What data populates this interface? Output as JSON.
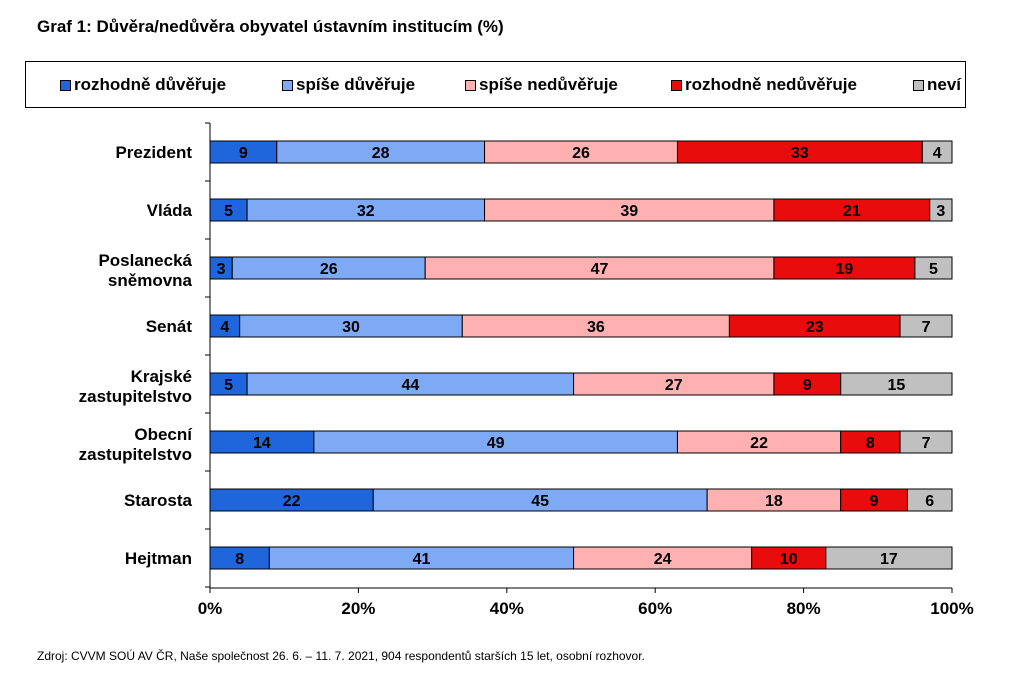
{
  "chart_data": {
    "type": "bar",
    "orientation": "horizontal",
    "stacked": true,
    "title_prefix": "Graf 1:",
    "title": "Důvěra/nedůvěra obyvatel ústavním institucím (%)",
    "xlabel": "",
    "ylabel": "",
    "xlim": [
      0,
      100
    ],
    "x_ticks": [
      "0%",
      "20%",
      "40%",
      "60%",
      "80%",
      "100%"
    ],
    "grid": false,
    "legend_position": "top",
    "categories": [
      "Prezident",
      "Vláda",
      "Poslanecká sněmovna",
      "Senát",
      "Krajské zastupitelstvo",
      "Obecní zastupitelstvo",
      "Starosta",
      "Hejtman"
    ],
    "series": [
      {
        "name": "rozhodně důvěřuje",
        "color": "#1f66dc",
        "values": [
          9,
          5,
          3,
          4,
          5,
          14,
          22,
          8
        ]
      },
      {
        "name": "spíše důvěřuje",
        "color": "#7eaaf5",
        "values": [
          28,
          32,
          26,
          30,
          44,
          49,
          45,
          41
        ]
      },
      {
        "name": "spíše nedůvěřuje",
        "color": "#ffb1b1",
        "values": [
          26,
          39,
          47,
          36,
          27,
          22,
          18,
          24
        ]
      },
      {
        "name": "rozhodně nedůvěřuje",
        "color": "#e80c0c",
        "values": [
          33,
          21,
          19,
          23,
          9,
          8,
          9,
          10
        ]
      },
      {
        "name": "neví",
        "color": "#c0c0c0",
        "values": [
          4,
          3,
          5,
          7,
          15,
          7,
          6,
          17
        ]
      }
    ],
    "source": "Zdroj: CVVM SOÚ AV ČR, Naše společnost 26.  6. – 11. 7. 2021, 904 respondentů starších 15 let, osobní rozhovor."
  }
}
